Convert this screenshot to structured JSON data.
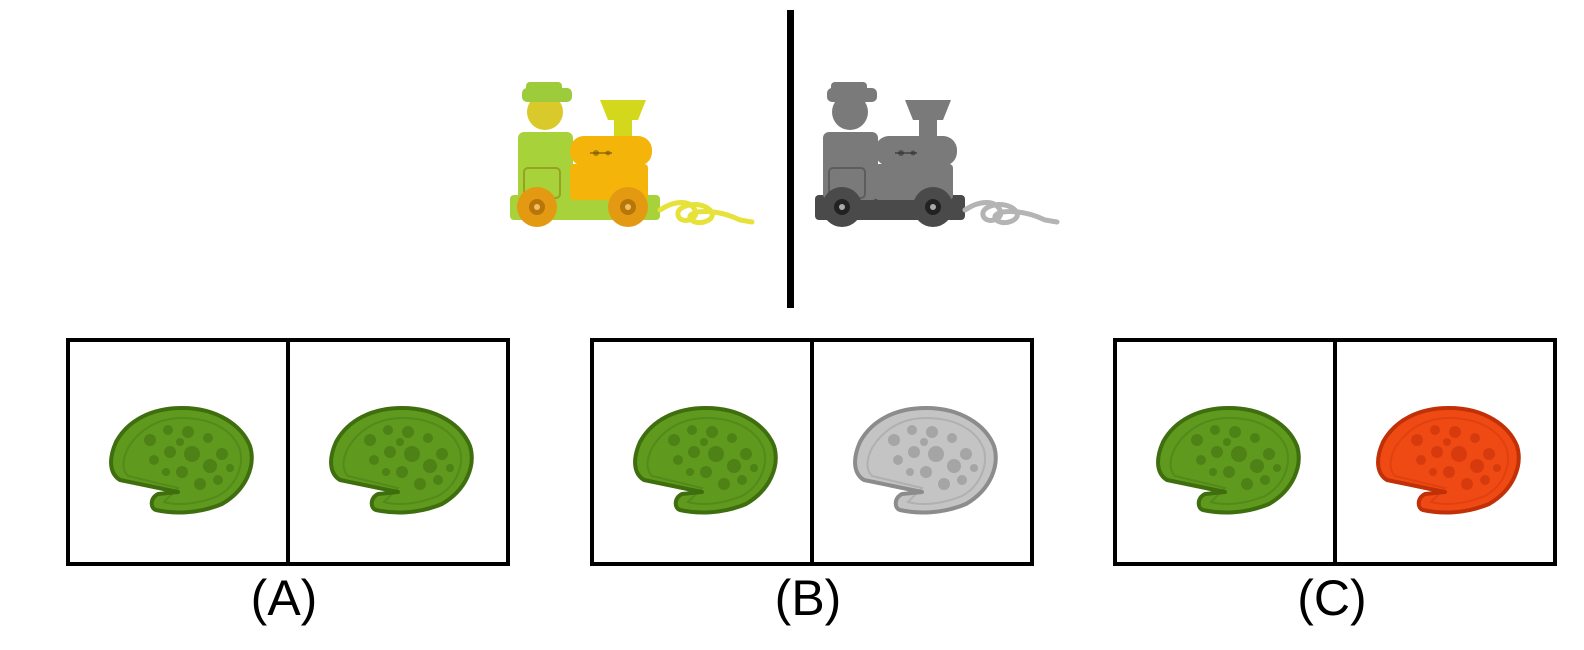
{
  "colors": {
    "train_color_head": "#9ccc3c",
    "train_color_body": "#f5b40a",
    "train_color_cab": "#a8d23a",
    "train_color_wheel": "#e39a12",
    "train_color_string": "#e6e23a",
    "train_gray_dark": "#4a4a4a",
    "train_gray_mid": "#7a7a7a",
    "train_gray_light": "#b4b4b4",
    "pizza_green": "#5f9a1f",
    "pizza_green_dark": "#3f6e0e",
    "pizza_gray": "#c4c4c4",
    "pizza_gray_dark": "#8c8c8c",
    "pizza_red": "#f04a14",
    "pizza_red_dark": "#c23008"
  },
  "example": {
    "left_icon": "toy-train-colored-icon",
    "right_icon": "toy-train-grayscale-icon"
  },
  "options": [
    {
      "label": "(A)",
      "left_icon": "pizza-green-icon",
      "right_icon": "pizza-green-icon"
    },
    {
      "label": "(B)",
      "left_icon": "pizza-green-icon",
      "right_icon": "pizza-gray-icon"
    },
    {
      "label": "(C)",
      "left_icon": "pizza-green-icon",
      "right_icon": "pizza-red-icon"
    }
  ]
}
